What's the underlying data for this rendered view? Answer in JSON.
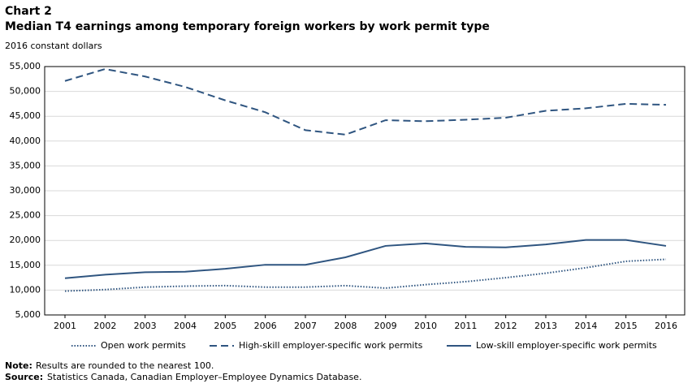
{
  "chart_data": {
    "type": "line",
    "heading": "Chart 2",
    "title": "Median T4 earnings among temporary foreign workers by work permit type",
    "subtitle": "2016 constant dollars",
    "categories": [
      "2001",
      "2002",
      "2003",
      "2004",
      "2005",
      "2006",
      "2007",
      "2008",
      "2009",
      "2010",
      "2011",
      "2012",
      "2013",
      "2014",
      "2015",
      "2016"
    ],
    "series": [
      {
        "name": "Open work permits",
        "color": "#2f5580",
        "dash": "dotted",
        "values": [
          9800,
          10100,
          10600,
          10800,
          10900,
          10600,
          10600,
          10900,
          10400,
          11100,
          11700,
          12500,
          13400,
          14500,
          15800,
          16200
        ]
      },
      {
        "name": "High-skill employer-specific work permits",
        "color": "#2f5580",
        "dash": "dashed",
        "values": [
          52100,
          54500,
          53000,
          50900,
          48200,
          45800,
          42200,
          41300,
          44200,
          44000,
          44300,
          44700,
          46100,
          46600,
          47500,
          47300
        ]
      },
      {
        "name": "Low-skill employer-specific work permits",
        "color": "#2f5580",
        "dash": "solid",
        "values": [
          12400,
          13100,
          13600,
          13700,
          14300,
          15100,
          15100,
          16600,
          18900,
          19400,
          18700,
          18600,
          19200,
          20100,
          20100,
          18900
        ]
      }
    ],
    "ylim": [
      5000,
      55000
    ],
    "yticks": [
      {
        "value": 5000,
        "label": "5,000"
      },
      {
        "value": 10000,
        "label": "10,000"
      },
      {
        "value": 15000,
        "label": "15,000"
      },
      {
        "value": 20000,
        "label": "20,000"
      },
      {
        "value": 25000,
        "label": "25,000"
      },
      {
        "value": 30000,
        "label": "30,000"
      },
      {
        "value": 35000,
        "label": "35,000"
      },
      {
        "value": 40000,
        "label": "40,000"
      },
      {
        "value": 45000,
        "label": "45,000"
      },
      {
        "value": 50000,
        "label": "50,000"
      },
      {
        "value": 55000,
        "label": "55,000"
      }
    ],
    "grid": true,
    "legend": "bottom",
    "note_label": "Note:",
    "note": "Results are rounded to the nearest 100.",
    "source_label": "Source:",
    "source": "Statistics Canada, Canadian Employer–Employee Dynamics Database."
  }
}
